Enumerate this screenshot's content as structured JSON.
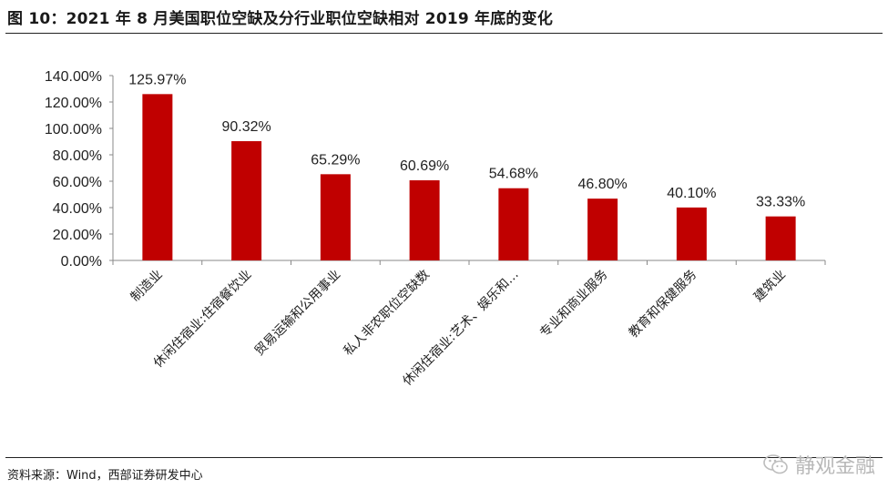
{
  "header": {
    "title": "图 10：2021 年 8 月美国职位空缺及分行业职位空缺相对 2019 年底的变化"
  },
  "footer": {
    "source": "资料来源：Wind，西部证券研发中心",
    "watermark": "静观金融"
  },
  "chart_data": {
    "type": "bar",
    "title": "",
    "xlabel": "",
    "ylabel": "",
    "categories": [
      "制造业",
      "休闲住宿业:住宿餐饮业",
      "贸易运输和公用事业",
      "私人非农职位空缺数",
      "休闲住宿业:艺术、娱乐和…",
      "专业和商业服务",
      "教育和保健服务",
      "建筑业"
    ],
    "values": [
      125.97,
      90.32,
      65.29,
      60.69,
      54.68,
      46.8,
      40.1,
      33.33
    ],
    "value_labels": [
      "125.97%",
      "90.32%",
      "65.29%",
      "60.69%",
      "54.68%",
      "46.80%",
      "40.10%",
      "33.33%"
    ],
    "ylim": [
      0,
      140
    ],
    "yticks": [
      0,
      20,
      40,
      60,
      80,
      100,
      120,
      140
    ],
    "ytick_labels": [
      "0.00%",
      "20.00%",
      "40.00%",
      "60.00%",
      "80.00%",
      "100.00%",
      "120.00%",
      "140.00%"
    ],
    "bar_color": "#c00000",
    "grid": false,
    "legend": "none"
  }
}
